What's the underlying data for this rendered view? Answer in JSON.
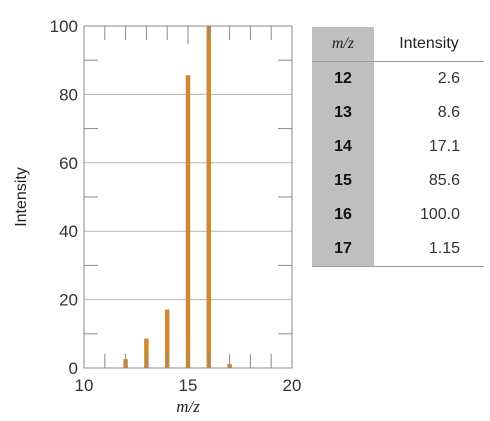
{
  "chart_data": {
    "type": "bar",
    "x": [
      12,
      13,
      14,
      15,
      16,
      17
    ],
    "values": [
      2.6,
      8.6,
      17.1,
      85.6,
      100.0,
      1.15
    ],
    "xlabel": "m/z",
    "ylabel": "Intensity",
    "xlim": [
      10,
      20
    ],
    "ylim": [
      0,
      100
    ],
    "x_ticks": [
      "10",
      "15",
      "20"
    ],
    "y_ticks": [
      "0",
      "20",
      "40",
      "60",
      "80",
      "100"
    ],
    "grid": "horizontal",
    "bar_color": "#d08a2e"
  },
  "table": {
    "headers": [
      "m/z",
      "Intensity"
    ],
    "rows": [
      {
        "mz": "12",
        "intensity": "2.6"
      },
      {
        "mz": "13",
        "intensity": "8.6"
      },
      {
        "mz": "14",
        "intensity": "17.1"
      },
      {
        "mz": "15",
        "intensity": "85.6"
      },
      {
        "mz": "16",
        "intensity": "100.0"
      },
      {
        "mz": "17",
        "intensity": "1.15"
      }
    ],
    "header_bg": "#bfbfbf"
  }
}
